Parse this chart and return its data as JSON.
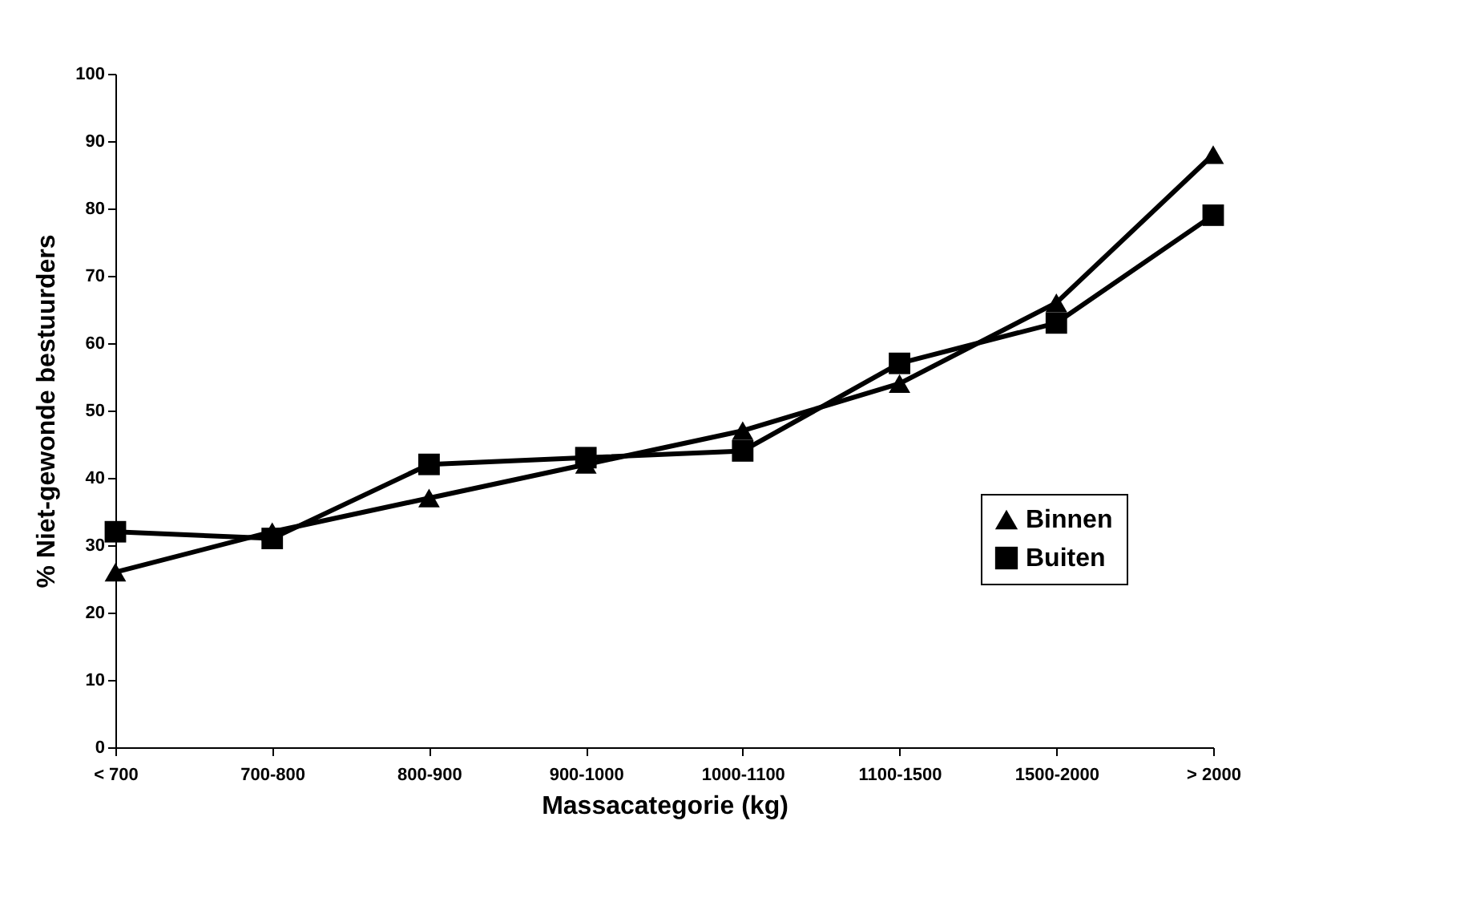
{
  "chart_data": {
    "type": "line",
    "xlabel": "Massacategorie (kg)",
    "ylabel": "% Niet-gewonde bestuurders",
    "categories": [
      "< 700",
      "700-800",
      "800-900",
      "900-1000",
      "1000-1100",
      "1100-1500",
      "1500-2000",
      "> 2000"
    ],
    "series": [
      {
        "name": "Binnen",
        "color": "#000000",
        "marker": "triangle",
        "values": [
          26,
          32,
          37,
          42,
          47,
          54,
          66,
          88
        ]
      },
      {
        "name": "Buiten",
        "color": "#000000",
        "marker": "square",
        "values": [
          32,
          31,
          42,
          43,
          44,
          57,
          63,
          79
        ]
      }
    ],
    "ylim": [
      0,
      100
    ],
    "yticks": [
      0,
      10,
      20,
      30,
      40,
      50,
      60,
      70,
      80,
      90,
      100
    ],
    "grid": false,
    "legend": "right",
    "line_style": "solid"
  }
}
